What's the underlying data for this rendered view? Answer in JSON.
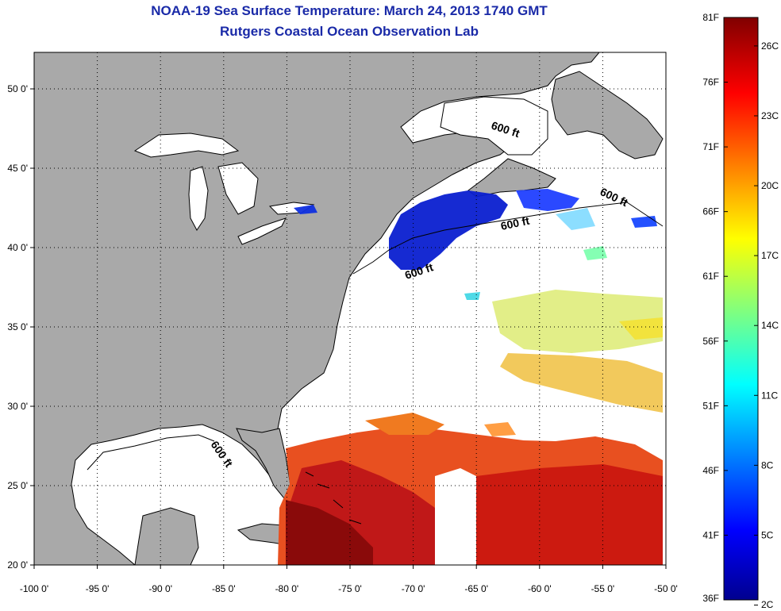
{
  "title": {
    "line1": "NOAA-19 Sea Surface Temperature:  March 24, 2013 1740 GMT",
    "line2": "Rutgers Coastal Ocean Observation Lab"
  },
  "map": {
    "lon_range": [
      -100,
      -50
    ],
    "lat_range": [
      20,
      52.3
    ],
    "lon_ticks": [
      {
        "value": -100,
        "label": "-100 0'"
      },
      {
        "value": -95,
        "label": "-95 0'"
      },
      {
        "value": -90,
        "label": "-90 0'"
      },
      {
        "value": -85,
        "label": "-85 0'"
      },
      {
        "value": -80,
        "label": "-80 0'"
      },
      {
        "value": -75,
        "label": "-75 0'"
      },
      {
        "value": -70,
        "label": "-70 0'"
      },
      {
        "value": -65,
        "label": "-65 0'"
      },
      {
        "value": -60,
        "label": "-60 0'"
      },
      {
        "value": -55,
        "label": "-55 0'"
      },
      {
        "value": -50,
        "label": "-50 0'"
      }
    ],
    "lat_ticks": [
      {
        "value": 20,
        "label": "20 0'"
      },
      {
        "value": 25,
        "label": "25 0'"
      },
      {
        "value": 30,
        "label": "30 0'"
      },
      {
        "value": 35,
        "label": "35 0'"
      },
      {
        "value": 40,
        "label": "40 0'"
      },
      {
        "value": 45,
        "label": "45 0'"
      },
      {
        "value": 50,
        "label": "50 0'"
      }
    ],
    "contour_labels": [
      "600 ft",
      "600 ft",
      "600 ft",
      "600 ft",
      "600 ft"
    ],
    "colors": {
      "land": "#a9a9a9",
      "water": "#ffffff",
      "grid": "#000000"
    }
  },
  "colorbar": {
    "f_labels": [
      "81F",
      "76F",
      "71F",
      "66F",
      "61F",
      "56F",
      "51F",
      "46F",
      "41F",
      "36F"
    ],
    "c_labels": [
      "26C",
      "23C",
      "20C",
      "17C",
      "14C",
      "11C",
      "8C",
      "5C",
      "2C"
    ]
  }
}
